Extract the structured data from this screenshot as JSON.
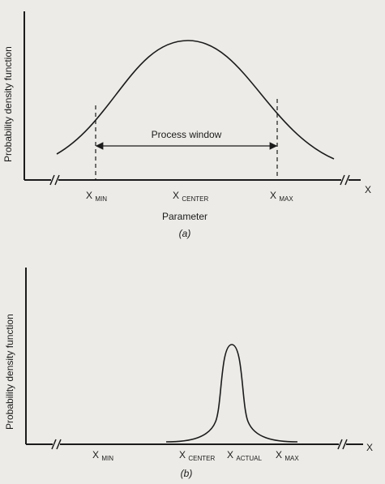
{
  "figure_a": {
    "ylabel": "Probability density function",
    "xaxis_symbol": "X",
    "ticks": [
      {
        "main": "X",
        "sub": "MIN"
      },
      {
        "main": "X",
        "sub": "CENTER"
      },
      {
        "main": "X",
        "sub": "MAX"
      }
    ],
    "window_label": "Process window",
    "xlabel": "Parameter",
    "caption": "(a)"
  },
  "figure_b": {
    "ylabel": "Probability density function",
    "xaxis_symbol": "X",
    "ticks": [
      {
        "main": "X",
        "sub": "MIN"
      },
      {
        "main": "X",
        "sub": "CENTER"
      },
      {
        "main": "X",
        "sub": "ACTUAL"
      },
      {
        "main": "X",
        "sub": "MAX"
      }
    ],
    "caption": "(b)"
  },
  "colors": {
    "background": "#ecebe7",
    "ink": "#1b1b1b"
  }
}
